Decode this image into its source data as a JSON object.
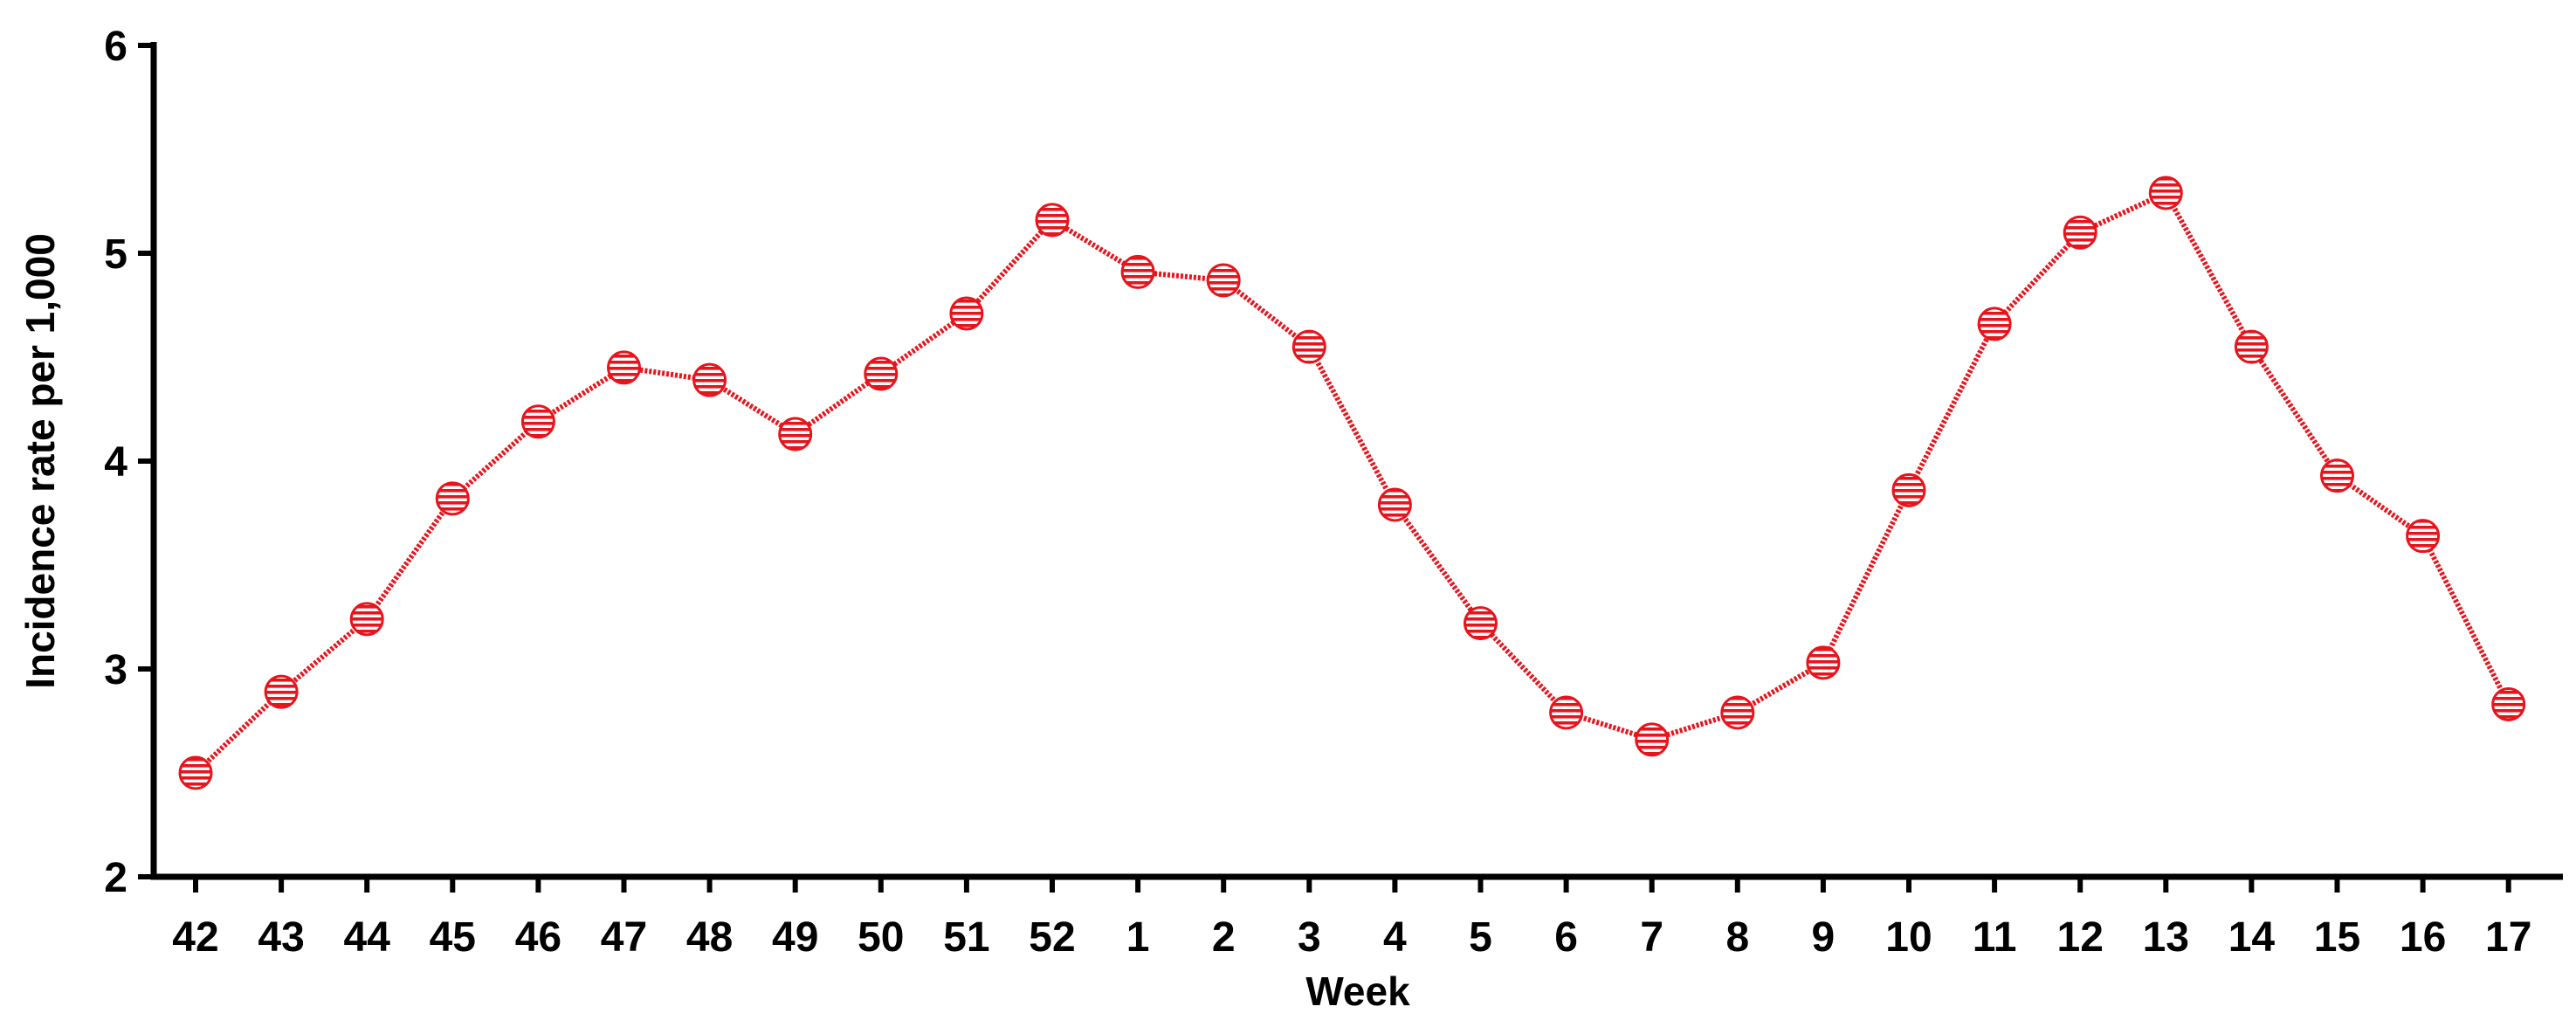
{
  "chart_data": {
    "type": "line",
    "title": "",
    "xlabel": "Week",
    "ylabel": "Incidence rate per 1,000",
    "categories": [
      "42",
      "43",
      "44",
      "45",
      "46",
      "47",
      "48",
      "49",
      "50",
      "51",
      "52",
      "1",
      "2",
      "3",
      "4",
      "5",
      "6",
      "7",
      "8",
      "9",
      "10",
      "11",
      "12",
      "13",
      "14",
      "15",
      "16",
      "17"
    ],
    "series": [
      {
        "values": [
          2.5,
          2.89,
          3.24,
          3.82,
          4.19,
          4.45,
          4.39,
          4.13,
          4.42,
          4.71,
          5.16,
          4.91,
          4.87,
          4.55,
          3.79,
          3.22,
          2.79,
          2.66,
          2.79,
          3.03,
          3.86,
          4.66,
          5.1,
          5.29,
          4.55,
          3.93,
          3.64,
          2.83
        ]
      }
    ],
    "ylim": [
      2,
      6
    ],
    "yticks": [
      2,
      3,
      4,
      5,
      6
    ],
    "grid": false,
    "legend": "none",
    "colors": {
      "series": "#e8141c",
      "axis": "#000000"
    }
  }
}
